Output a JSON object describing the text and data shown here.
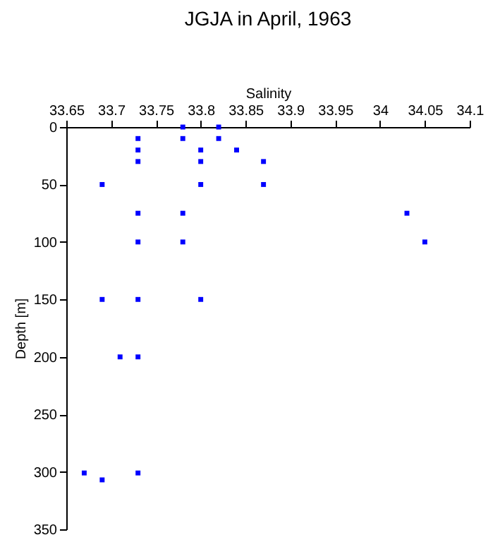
{
  "chart_data": {
    "type": "scatter",
    "title": "JGJA in April, 1963",
    "xlabel": "Salinity",
    "ylabel": "Depth [m]",
    "xlim": [
      33.65,
      34.1
    ],
    "xticks": [
      33.65,
      33.7,
      33.75,
      33.8,
      33.85,
      33.9,
      33.95,
      34,
      34.05,
      34.1
    ],
    "ylim": [
      350,
      0
    ],
    "yticks": [
      0,
      50,
      100,
      150,
      200,
      250,
      300,
      350
    ],
    "grid": false,
    "legend": false,
    "marker": "square",
    "series": [
      {
        "color": "#0000ff",
        "x": [
          33.78,
          33.82,
          33.73,
          33.78,
          33.82,
          33.73,
          33.8,
          33.84,
          33.73,
          33.8,
          33.87,
          33.69,
          33.8,
          33.87,
          33.73,
          33.78,
          34.03,
          33.73,
          33.78,
          34.05,
          33.69,
          33.73,
          33.8,
          33.71,
          33.73,
          33.67,
          33.73,
          33.69
        ],
        "values": [
          0,
          0,
          10,
          10,
          10,
          20,
          20,
          20,
          30,
          30,
          30,
          50,
          50,
          50,
          75,
          75,
          75,
          100,
          100,
          100,
          150,
          150,
          150,
          200,
          200,
          301,
          301,
          307
        ]
      }
    ]
  }
}
